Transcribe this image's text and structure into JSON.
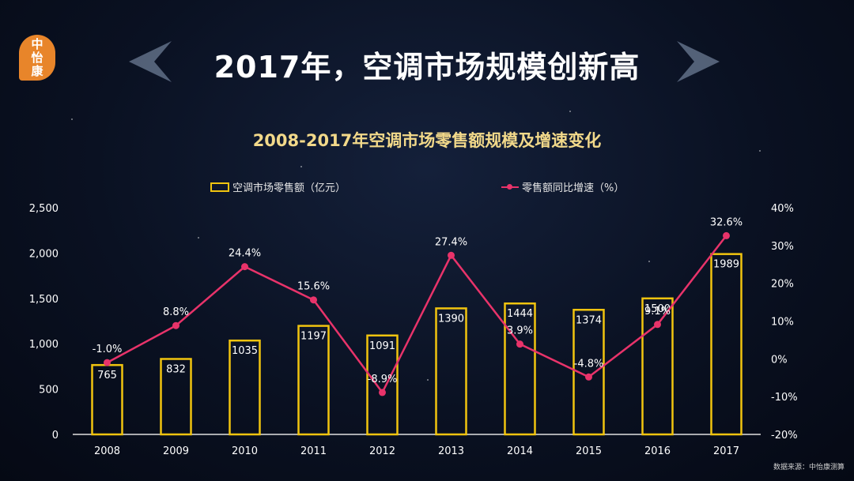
{
  "logo": {
    "line1": "中",
    "line2": "怡",
    "line3": "康"
  },
  "title": "2017年，空调市场规模创新高",
  "source": "数据来源：中怡康测算",
  "chart_data": {
    "type": "bar",
    "title": "2008-2017年空调市场零售额规模及增速变化",
    "categories": [
      "2008",
      "2009",
      "2010",
      "2011",
      "2012",
      "2013",
      "2014",
      "2015",
      "2016",
      "2017"
    ],
    "series": [
      {
        "name": "空调市场零售额（亿元）",
        "type": "bar",
        "axis": "left",
        "values": [
          765,
          832,
          1035,
          1197,
          1091,
          1390,
          1444,
          1374,
          1500,
          1989
        ],
        "labels": [
          "765",
          "832",
          "1035",
          "1197",
          "1091",
          "1390",
          "1444",
          "1374",
          "1500",
          "1989"
        ]
      },
      {
        "name": "零售额同比增速（%）",
        "type": "line",
        "axis": "right",
        "values": [
          -1.0,
          8.8,
          24.4,
          15.6,
          -8.9,
          27.4,
          3.9,
          -4.8,
          9.1,
          32.6
        ],
        "labels": [
          "-1.0%",
          "8.8%",
          "24.4%",
          "15.6%",
          "-8.9%",
          "27.4%",
          "3.9%",
          "-4.8%",
          "9.1%",
          "32.6%"
        ]
      }
    ],
    "ylim_left": [
      0,
      2500
    ],
    "yticks_left": [
      "0",
      "500",
      "1,000",
      "1,500",
      "2,000",
      "2,500"
    ],
    "ylim_right": [
      -20,
      40
    ],
    "yticks_right": [
      "-20%",
      "-10%",
      "0%",
      "10%",
      "20%",
      "30%",
      "40%"
    ],
    "grid": false,
    "legend_position": "top",
    "colors": {
      "bar": "#f1c40f",
      "line": "#e8336a",
      "text": "#ffffff",
      "title": "#f2d98a"
    }
  }
}
